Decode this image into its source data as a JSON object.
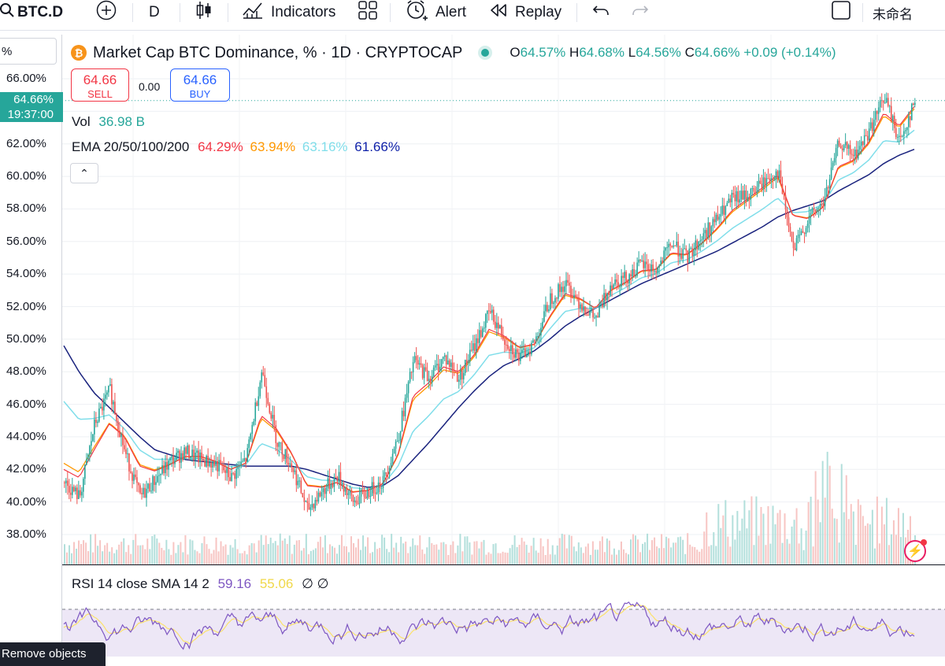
{
  "toolbar": {
    "symbol": "BTC.D",
    "interval": "D",
    "indicators_label": "Indicators",
    "alert_label": "Alert",
    "replay_label": "Replay",
    "layout_name": "未命名"
  },
  "legend": {
    "title": "Market Cap BTC Dominance, % · 1D · CRYPTOCAP",
    "open_key": "O",
    "open": "64.57%",
    "high_key": "H",
    "high": "64.68%",
    "low_key": "L",
    "low": "64.56%",
    "close_key": "C",
    "close": "64.66%",
    "change": "+0.09 (+0.14%)"
  },
  "trade": {
    "sell_price": "64.66",
    "sell_label": "SELL",
    "spread": "0.00",
    "buy_price": "64.66",
    "buy_label": "BUY"
  },
  "volume": {
    "label": "Vol",
    "value": "36.98 B"
  },
  "ema": {
    "label": "EMA 20/50/100/200",
    "v20": "64.29%",
    "v50": "63.94%",
    "v100": "63.16%",
    "v200": "61.66%"
  },
  "rsi": {
    "label": "RSI 14 close SMA 14 2",
    "rsi": "59.16",
    "sma": "55.06",
    "glyphs": "∅ ∅"
  },
  "price_axis": {
    "unit_box": "%",
    "current_price": "64.66%",
    "countdown": "19:37:00",
    "ticks": [
      "66.00%",
      "64.00%",
      "62.00%",
      "60.00%",
      "58.00%",
      "56.00%",
      "54.00%",
      "52.00%",
      "50.00%",
      "48.00%",
      "46.00%",
      "44.00%",
      "42.00%",
      "40.00%",
      "38.00%"
    ]
  },
  "remove_objects_label": "Remove objects",
  "colors": {
    "up": "#26a69a",
    "down": "#ef5350",
    "ema20": "#f23645",
    "ema50": "#ff9800",
    "ema100": "#80deea",
    "ema200": "#1a237e",
    "rsi": "#7e57c2",
    "rsi_sma": "#fbe26b"
  },
  "chart_data": {
    "type": "candlestick",
    "title": "Market Cap BTC Dominance, % · 1D · CRYPTOCAP",
    "ylim": [
      36.6,
      67.0
    ],
    "series": [
      {
        "name": "BTC.D close",
        "values": [
          41.2,
          40.3,
          44.8,
          46.9,
          43.0,
          40.3,
          41.4,
          42.5,
          43.1,
          42.6,
          42.3,
          41.5,
          42.7,
          48.1,
          43.7,
          42.2,
          39.5,
          40.7,
          41.6,
          40.0,
          40.6,
          41.3,
          44.1,
          48.7,
          47.6,
          48.9,
          47.6,
          49.6,
          51.7,
          50.0,
          48.8,
          49.9,
          52.5,
          53.4,
          52.2,
          51.2,
          53.5,
          53.8,
          54.6,
          54.2,
          55.9,
          55.0,
          56.3,
          57.4,
          58.6,
          58.8,
          59.6,
          60.3,
          55.4,
          57.4,
          58.4,
          62.1,
          61.2,
          62.8,
          64.9,
          62.1,
          64.66
        ]
      },
      {
        "name": "EMA 20",
        "values": [
          42.0,
          41.5,
          43.2,
          44.8,
          44.0,
          42.2,
          41.9,
          42.3,
          42.8,
          42.8,
          42.5,
          42.0,
          42.4,
          45.3,
          44.5,
          43.0,
          41.0,
          40.9,
          41.2,
          40.6,
          40.7,
          41.1,
          42.9,
          46.5,
          47.3,
          48.3,
          48.0,
          49.0,
          50.6,
          50.2,
          49.5,
          49.7,
          51.4,
          52.8,
          52.5,
          51.9,
          53.0,
          53.5,
          54.2,
          54.3,
          55.3,
          55.2,
          55.9,
          56.8,
          57.9,
          58.6,
          59.3,
          60.1,
          57.6,
          57.4,
          58.1,
          60.6,
          61.0,
          62.1,
          63.9,
          63.1,
          64.29
        ]
      },
      {
        "name": "EMA 200",
        "values": [
          49.6,
          48.0,
          46.7,
          45.8,
          44.9,
          44.0,
          43.2,
          42.9,
          42.6,
          42.5,
          42.4,
          42.3,
          42.2,
          42.2,
          42.2,
          42.2,
          42.0,
          41.7,
          41.4,
          41.1,
          40.9,
          41.0,
          41.6,
          42.6,
          43.6,
          44.7,
          45.8,
          46.8,
          47.7,
          48.4,
          48.8,
          49.3,
          50.0,
          50.8,
          51.4,
          51.9,
          52.4,
          52.9,
          53.4,
          53.8,
          54.2,
          54.6,
          55.0,
          55.4,
          55.9,
          56.4,
          56.9,
          57.5,
          57.9,
          58.2,
          58.5,
          59.1,
          59.6,
          60.1,
          60.8,
          61.3,
          61.66
        ]
      }
    ]
  }
}
